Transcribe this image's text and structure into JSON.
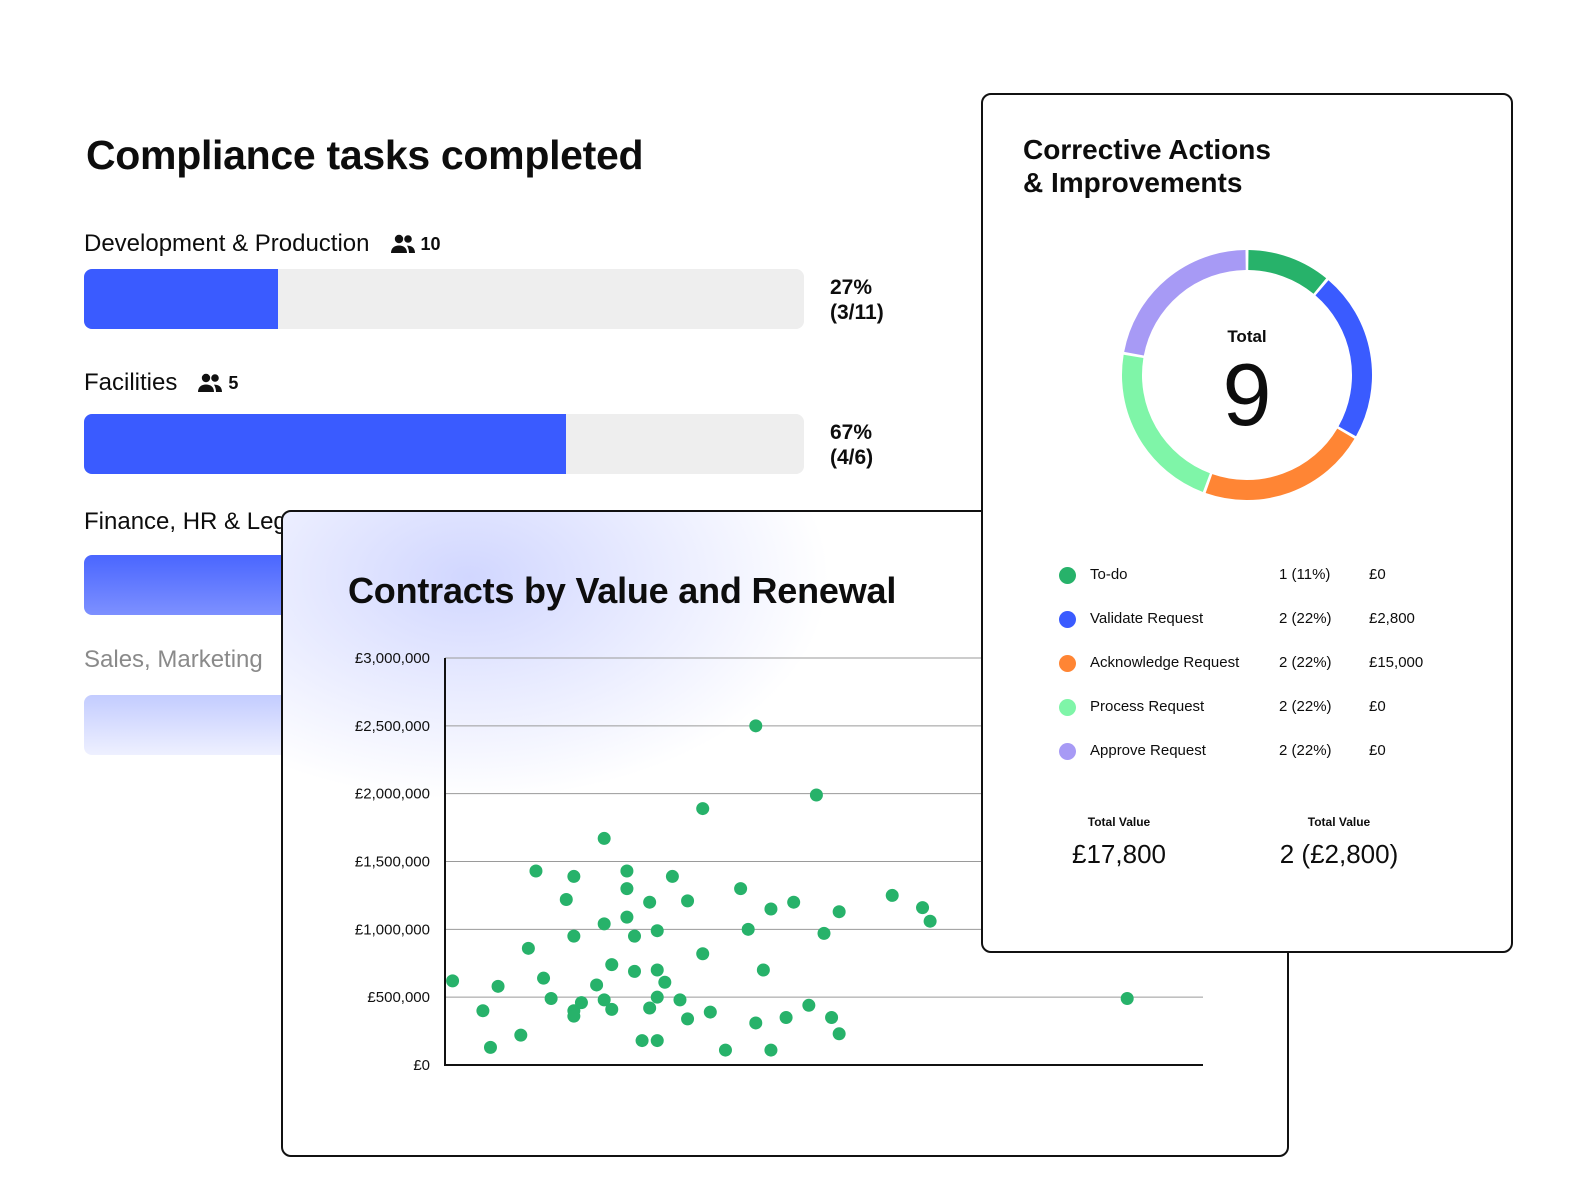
{
  "compliance": {
    "title": "Compliance tasks completed",
    "departments": [
      {
        "name": "Development & Production",
        "people": "10",
        "progress": 0.27,
        "pct": "27%",
        "ratio": "(3/11)"
      },
      {
        "name": "Facilities",
        "people": "5",
        "progress": 0.67,
        "pct": "67%",
        "ratio": "(4/6)"
      },
      {
        "name": "Finance, HR & Legal",
        "visible_text": "Finance, HR & Leg"
      },
      {
        "name": "Sales, Marketing",
        "visible_text": "Sales, Marketing"
      }
    ],
    "bar_color": "#3a5bff",
    "icon": "people-icon"
  },
  "contracts": {
    "title": "Contracts by Value and Renewal",
    "chart_data": {
      "type": "scatter",
      "title": "Contracts by Value and Renewal",
      "yticks": [
        "£3,000,000",
        "£2,500,000",
        "£2,000,000",
        "£1,500,000",
        "£1,000,000",
        "£500,000",
        "£0"
      ],
      "ylim": [
        0,
        3000000
      ],
      "xlim": [
        0,
        100
      ],
      "grid": true,
      "color": "#27b26a",
      "points": [
        [
          1,
          620000
        ],
        [
          5,
          400000
        ],
        [
          6,
          130000
        ],
        [
          7,
          580000
        ],
        [
          10,
          220000
        ],
        [
          11,
          860000
        ],
        [
          12,
          1430000
        ],
        [
          13,
          640000
        ],
        [
          14,
          490000
        ],
        [
          16,
          1220000
        ],
        [
          17,
          950000
        ],
        [
          17,
          400000
        ],
        [
          17,
          360000
        ],
        [
          17,
          1390000
        ],
        [
          18,
          460000
        ],
        [
          20,
          590000
        ],
        [
          21,
          480000
        ],
        [
          21,
          1670000
        ],
        [
          21,
          1040000
        ],
        [
          22,
          410000
        ],
        [
          22,
          740000
        ],
        [
          24,
          1090000
        ],
        [
          24,
          1300000
        ],
        [
          24,
          1430000
        ],
        [
          25,
          950000
        ],
        [
          25,
          690000
        ],
        [
          26,
          180000
        ],
        [
          27,
          420000
        ],
        [
          27,
          1200000
        ],
        [
          28,
          990000
        ],
        [
          28,
          500000
        ],
        [
          28,
          700000
        ],
        [
          28,
          180000
        ],
        [
          29,
          610000
        ],
        [
          30,
          1390000
        ],
        [
          31,
          480000
        ],
        [
          32,
          1210000
        ],
        [
          32,
          340000
        ],
        [
          34,
          820000
        ],
        [
          34,
          1890000
        ],
        [
          35,
          390000
        ],
        [
          37,
          110000
        ],
        [
          39,
          1300000
        ],
        [
          40,
          1000000
        ],
        [
          41,
          2500000
        ],
        [
          41,
          310000
        ],
        [
          42,
          700000
        ],
        [
          43,
          110000
        ],
        [
          43,
          1150000
        ],
        [
          45,
          350000
        ],
        [
          46,
          1200000
        ],
        [
          48,
          440000
        ],
        [
          49,
          1990000
        ],
        [
          50,
          970000
        ],
        [
          51,
          350000
        ],
        [
          52,
          1130000
        ],
        [
          52,
          230000
        ],
        [
          59,
          1250000
        ],
        [
          63,
          1160000
        ],
        [
          64,
          1060000
        ],
        [
          90,
          490000
        ]
      ]
    }
  },
  "corrective": {
    "title_line1": "Corrective Actions",
    "title_line2": "& Improvements",
    "total_label": "Total",
    "total_value": "9",
    "legend": [
      {
        "name": "To-do",
        "count": "1 (11%)",
        "value": "£0",
        "color": "#27b26a",
        "share": 1
      },
      {
        "name": "Validate Request",
        "count": "2 (22%)",
        "value": "£2,800",
        "color": "#3a5bff",
        "share": 2
      },
      {
        "name": "Acknowledge Request",
        "count": "2 (22%)",
        "value": "£15,000",
        "color": "#ff8534",
        "share": 2
      },
      {
        "name": "Process Request",
        "count": "2 (22%)",
        "value": "£0",
        "color": "#7ff5a8",
        "share": 2
      },
      {
        "name": "Approve Request",
        "count": "2 (22%)",
        "value": "£0",
        "color": "#a79af5",
        "share": 2
      }
    ],
    "totals": [
      {
        "label": "Total Value",
        "value": "£17,800"
      },
      {
        "label": "Total Value",
        "value": "2 (£2,800)"
      }
    ]
  }
}
